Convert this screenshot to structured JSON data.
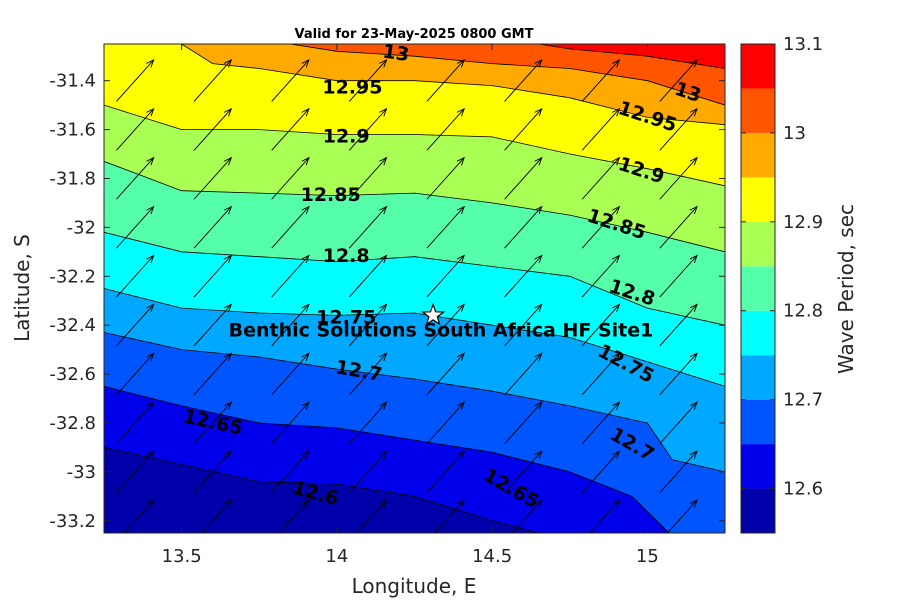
{
  "chart_data": {
    "type": "heatmap",
    "subtype": "filled-contour",
    "title": "Valid for 23-May-2025 0800 GMT",
    "xlabel": "Longitude, E",
    "ylabel": "Latitude, S",
    "xlim": [
      13.25,
      15.25
    ],
    "ylim": [
      -33.25,
      -31.25
    ],
    "xticks": [
      13.5,
      14,
      14.5,
      15
    ],
    "xtick_labels": [
      "13.5",
      "14",
      "14.5",
      "15"
    ],
    "yticks": [
      -31.4,
      -31.6,
      -31.8,
      -32,
      -32.2,
      -32.4,
      -32.6,
      -32.8,
      -33,
      -33.2
    ],
    "ytick_labels": [
      "-31.4",
      "-31.6",
      "-31.8",
      "-32",
      "-32.2",
      "-32.4",
      "-32.6",
      "-32.8",
      "-33",
      "-33.2"
    ],
    "colorbar": {
      "label": "Wave Period, sec",
      "range": [
        12.55,
        13.1
      ],
      "ticks": [
        12.6,
        12.7,
        12.8,
        12.9,
        13,
        13.1
      ],
      "tick_labels": [
        "12.6",
        "12.7",
        "12.8",
        "12.9",
        "13",
        "13.1"
      ]
    },
    "levels": [
      12.55,
      12.6,
      12.65,
      12.7,
      12.75,
      12.8,
      12.85,
      12.9,
      12.95,
      13.0,
      13.05,
      13.1
    ],
    "level_colors": [
      "#0000aa",
      "#0000ea",
      "#0055ff",
      "#00a8ff",
      "#00ffff",
      "#55ffaa",
      "#aaff55",
      "#ffff00",
      "#ffaa00",
      "#ff5500",
      "#ff0000"
    ],
    "contours": [
      {
        "level": 12.6,
        "points": [
          [
            13.25,
            -32.9
          ],
          [
            13.5,
            -32.97
          ],
          [
            13.75,
            -33.04
          ],
          [
            14.0,
            -33.05
          ],
          [
            14.25,
            -33.1
          ],
          [
            14.5,
            -33.2
          ],
          [
            14.65,
            -33.25
          ]
        ]
      },
      {
        "level": 12.65,
        "points": [
          [
            13.25,
            -32.65
          ],
          [
            13.5,
            -32.73
          ],
          [
            13.75,
            -32.8
          ],
          [
            14.0,
            -32.82
          ],
          [
            14.25,
            -32.87
          ],
          [
            14.5,
            -32.92
          ],
          [
            14.75,
            -33.0
          ],
          [
            14.95,
            -33.1
          ],
          [
            15.07,
            -33.25
          ]
        ]
      },
      {
        "level": 12.7,
        "points": [
          [
            13.25,
            -32.43
          ],
          [
            13.5,
            -32.5
          ],
          [
            13.75,
            -32.53
          ],
          [
            14.0,
            -32.58
          ],
          [
            14.25,
            -32.62
          ],
          [
            14.5,
            -32.67
          ],
          [
            14.75,
            -32.73
          ],
          [
            15.0,
            -32.8
          ],
          [
            15.08,
            -32.95
          ],
          [
            15.25,
            -33.0
          ]
        ]
      },
      {
        "level": 12.75,
        "points": [
          [
            13.25,
            -32.25
          ],
          [
            13.5,
            -32.33
          ],
          [
            13.75,
            -32.35
          ],
          [
            14.0,
            -32.36
          ],
          [
            14.25,
            -32.35
          ],
          [
            14.5,
            -32.4
          ],
          [
            14.75,
            -32.45
          ],
          [
            15.0,
            -32.55
          ],
          [
            15.25,
            -32.65
          ]
        ]
      },
      {
        "level": 12.8,
        "points": [
          [
            13.25,
            -32.02
          ],
          [
            13.5,
            -32.1
          ],
          [
            13.75,
            -32.12
          ],
          [
            14.0,
            -32.14
          ],
          [
            14.25,
            -32.12
          ],
          [
            14.5,
            -32.16
          ],
          [
            14.75,
            -32.2
          ],
          [
            15.0,
            -32.33
          ],
          [
            15.25,
            -32.4
          ]
        ]
      },
      {
        "level": 12.85,
        "points": [
          [
            13.25,
            -31.73
          ],
          [
            13.5,
            -31.85
          ],
          [
            13.75,
            -31.86
          ],
          [
            14.0,
            -31.87
          ],
          [
            14.25,
            -31.86
          ],
          [
            14.5,
            -31.9
          ],
          [
            14.75,
            -31.95
          ],
          [
            15.0,
            -32.02
          ],
          [
            15.25,
            -32.1
          ]
        ]
      },
      {
        "level": 12.9,
        "points": [
          [
            13.25,
            -31.5
          ],
          [
            13.5,
            -31.6
          ],
          [
            13.75,
            -31.6
          ],
          [
            14.0,
            -31.62
          ],
          [
            14.25,
            -31.62
          ],
          [
            14.5,
            -31.63
          ],
          [
            14.75,
            -31.7
          ],
          [
            15.0,
            -31.76
          ],
          [
            15.25,
            -31.83
          ]
        ]
      },
      {
        "level": 12.95,
        "points": [
          [
            13.5,
            -31.25
          ],
          [
            13.6,
            -31.33
          ],
          [
            13.75,
            -31.35
          ],
          [
            14.0,
            -31.4
          ],
          [
            14.25,
            -31.4
          ],
          [
            14.5,
            -31.42
          ],
          [
            14.75,
            -31.47
          ],
          [
            15.0,
            -31.55
          ],
          [
            15.25,
            -31.58
          ]
        ]
      },
      {
        "level": 13.0,
        "points": [
          [
            13.85,
            -31.25
          ],
          [
            14.0,
            -31.28
          ],
          [
            14.25,
            -31.3
          ],
          [
            14.5,
            -31.33
          ],
          [
            14.75,
            -31.35
          ],
          [
            15.0,
            -31.4
          ],
          [
            15.25,
            -31.5
          ]
        ]
      },
      {
        "level": 13.05,
        "points": [
          [
            14.65,
            -31.25
          ],
          [
            14.75,
            -31.27
          ],
          [
            15.0,
            -31.3
          ],
          [
            15.25,
            -31.35
          ]
        ]
      }
    ],
    "contour_labels": [
      {
        "text": "13",
        "x": 14.19,
        "y": -31.29,
        "angle": 8
      },
      {
        "text": "12.95",
        "x": 14.05,
        "y": -31.43,
        "angle": 0
      },
      {
        "text": "12.9",
        "x": 14.03,
        "y": -31.63,
        "angle": 0
      },
      {
        "text": "12.85",
        "x": 13.98,
        "y": -31.87,
        "angle": 0
      },
      {
        "text": "12.8",
        "x": 14.03,
        "y": -32.12,
        "angle": 0
      },
      {
        "text": "12.75",
        "x": 14.03,
        "y": -32.37,
        "angle": 0
      },
      {
        "text": "12.7",
        "x": 14.07,
        "y": -32.59,
        "angle": 10
      },
      {
        "text": "12.65",
        "x": 13.6,
        "y": -32.8,
        "angle": 12
      },
      {
        "text": "12.6",
        "x": 13.93,
        "y": -33.09,
        "angle": 15
      },
      {
        "text": "13",
        "x": 15.13,
        "y": -31.45,
        "angle": 18
      },
      {
        "text": "12.95",
        "x": 15.0,
        "y": -31.55,
        "angle": 18
      },
      {
        "text": "12.9",
        "x": 14.98,
        "y": -31.77,
        "angle": 18
      },
      {
        "text": "12.85",
        "x": 14.9,
        "y": -31.99,
        "angle": 18
      },
      {
        "text": "12.8",
        "x": 14.95,
        "y": -32.27,
        "angle": 18
      },
      {
        "text": "12.75",
        "x": 14.93,
        "y": -32.56,
        "angle": 28
      },
      {
        "text": "12.7",
        "x": 14.95,
        "y": -32.89,
        "angle": 30
      },
      {
        "text": "12.65",
        "x": 14.56,
        "y": -33.07,
        "angle": 30
      }
    ],
    "vectors": {
      "x": [
        13.35,
        13.6,
        13.85,
        14.1,
        14.35,
        14.6,
        14.85,
        15.1
      ],
      "y": [
        -31.4,
        -31.6,
        -31.8,
        -32.0,
        -32.2,
        -32.4,
        -32.6,
        -32.8,
        -33.0,
        -33.2
      ],
      "dx": 0.12,
      "dy": 0.17
    },
    "site": {
      "name": "Benthic Solutions South Africa HF Site1",
      "x": 14.31,
      "y": -32.36,
      "marker": "star"
    }
  }
}
